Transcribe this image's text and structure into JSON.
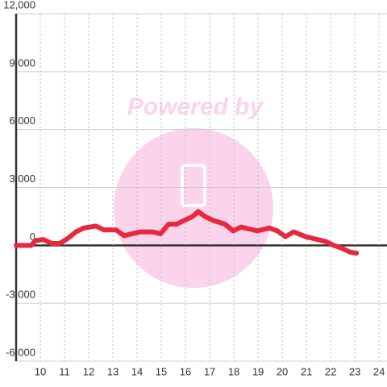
{
  "chart_data": {
    "type": "line",
    "watermark": "Powered by",
    "x": [
      9.0,
      9.63,
      9.8,
      10.13,
      10.47,
      10.8,
      11.13,
      11.47,
      11.8,
      12.3,
      12.63,
      13.13,
      13.47,
      13.8,
      14.13,
      14.63,
      14.97,
      15.3,
      15.63,
      15.97,
      16.3,
      16.53,
      16.8,
      17.13,
      17.63,
      17.97,
      18.3,
      18.63,
      18.97,
      19.47,
      19.8,
      20.13,
      20.47,
      20.97,
      21.47,
      21.8,
      22.13,
      22.47,
      22.8,
      23.07
    ],
    "series": [
      {
        "color": "#e8283c",
        "values": [
          0,
          0,
          250,
          300,
          100,
          100,
          350,
          700,
          900,
          1000,
          800,
          800,
          500,
          600,
          700,
          700,
          600,
          1100,
          1100,
          1300,
          1500,
          1750,
          1500,
          1300,
          1100,
          750,
          950,
          850,
          750,
          900,
          750,
          450,
          700,
          450,
          300,
          200,
          0,
          -150,
          -350,
          -400
        ]
      }
    ],
    "xlim": [
      9,
      24.33
    ],
    "xticks": [
      10,
      11,
      12,
      13,
      14,
      15,
      16,
      17,
      18,
      19,
      20,
      21,
      22,
      23,
      24
    ],
    "ylim": [
      -6000,
      12000
    ],
    "yticks": [
      {
        "value": -6000,
        "label": "-6,000"
      },
      {
        "value": -3000,
        "label": "-3,000"
      },
      0,
      {
        "value": 3000,
        "label": "3,000"
      },
      {
        "value": 6000,
        "label": "6,000"
      },
      {
        "value": 9000,
        "label": "9,000"
      },
      {
        "value": 12000,
        "label": "12,000"
      }
    ],
    "grid": true
  }
}
